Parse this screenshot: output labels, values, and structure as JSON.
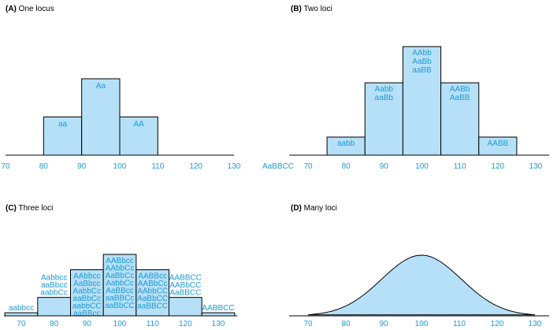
{
  "chart_data": [
    {
      "type": "bar",
      "panel_letter": "(A)",
      "title": "One locus",
      "x_ticks": [
        70,
        80,
        90,
        100,
        110,
        120,
        130
      ],
      "xlim": [
        70,
        130
      ],
      "ylim": [
        0,
        4
      ],
      "bars": [
        {
          "x0": 80,
          "x1": 90,
          "value": 1,
          "labels": [
            "aa"
          ]
        },
        {
          "x0": 90,
          "x1": 100,
          "value": 2,
          "labels": [
            "Aa"
          ]
        },
        {
          "x0": 100,
          "x1": 110,
          "value": 1,
          "labels": [
            "AA"
          ]
        }
      ]
    },
    {
      "type": "bar",
      "panel_letter": "(B)",
      "title": "Two loci",
      "x_ticks": [
        70,
        80,
        90,
        100,
        110,
        120,
        130
      ],
      "xlim": [
        70,
        130
      ],
      "ylim": [
        0,
        6.4
      ],
      "extra_label": "AaBBCC",
      "bars": [
        {
          "x0": 75,
          "x1": 85,
          "value": 1,
          "labels": [
            "aabb"
          ]
        },
        {
          "x0": 85,
          "x1": 95,
          "value": 4,
          "labels": [
            "Aabb",
            "aaBb"
          ]
        },
        {
          "x0": 95,
          "x1": 105,
          "value": 6,
          "labels": [
            "AAbb",
            "AaBb",
            "aaBB"
          ]
        },
        {
          "x0": 105,
          "x1": 115,
          "value": 4,
          "labels": [
            "AABb",
            "AaBB"
          ]
        },
        {
          "x0": 115,
          "x1": 125,
          "value": 1,
          "labels": [
            "AABB"
          ]
        }
      ]
    },
    {
      "type": "bar",
      "panel_letter": "(C)",
      "title": "Three loci",
      "x_ticks": [
        70,
        80,
        90,
        100,
        110,
        120,
        130
      ],
      "xlim": [
        66,
        136
      ],
      "ylim": [
        0,
        20
      ],
      "bars": [
        {
          "x0": 65,
          "x1": 75,
          "value": 1,
          "labels": [
            "aabbcc"
          ]
        },
        {
          "x0": 75,
          "x1": 85,
          "value": 6,
          "labels": [
            "Aabbcc",
            "aaBbcc",
            "aabbCc"
          ]
        },
        {
          "x0": 85,
          "x1": 95,
          "value": 15,
          "labels": [
            "AAbbcc",
            "AaBbcc",
            "AabbCc",
            "aaBbCc",
            "aabbCC",
            "aaBBcc"
          ]
        },
        {
          "x0": 95,
          "x1": 105,
          "value": 20,
          "labels": [
            "AABbcc",
            "AAbbCc",
            "AaBbCc",
            "AabbCc",
            "AaBBcc",
            "aaBBCc",
            "aaBbCC"
          ]
        },
        {
          "x0": 105,
          "x1": 115,
          "value": 15,
          "labels": [
            "AABBcc",
            "AABbCc",
            "AAbbCC",
            "AaBbCC",
            "aaBBCC"
          ]
        },
        {
          "x0": 115,
          "x1": 125,
          "value": 6,
          "labels": [
            "AABBCC",
            "AABbCC",
            "AaBBCC"
          ]
        },
        {
          "x0": 125,
          "x1": 135,
          "value": 1,
          "labels": [
            "AABBCC"
          ]
        }
      ]
    },
    {
      "type": "area",
      "panel_letter": "(D)",
      "title": "Many loci",
      "x_ticks": [
        70,
        80,
        90,
        100,
        110,
        120,
        130
      ],
      "xlim": [
        64,
        136
      ],
      "ylim": [
        0,
        1
      ],
      "distribution": "normal",
      "mean": 100,
      "sd": 10.5,
      "x_range": [
        70,
        130
      ]
    }
  ]
}
